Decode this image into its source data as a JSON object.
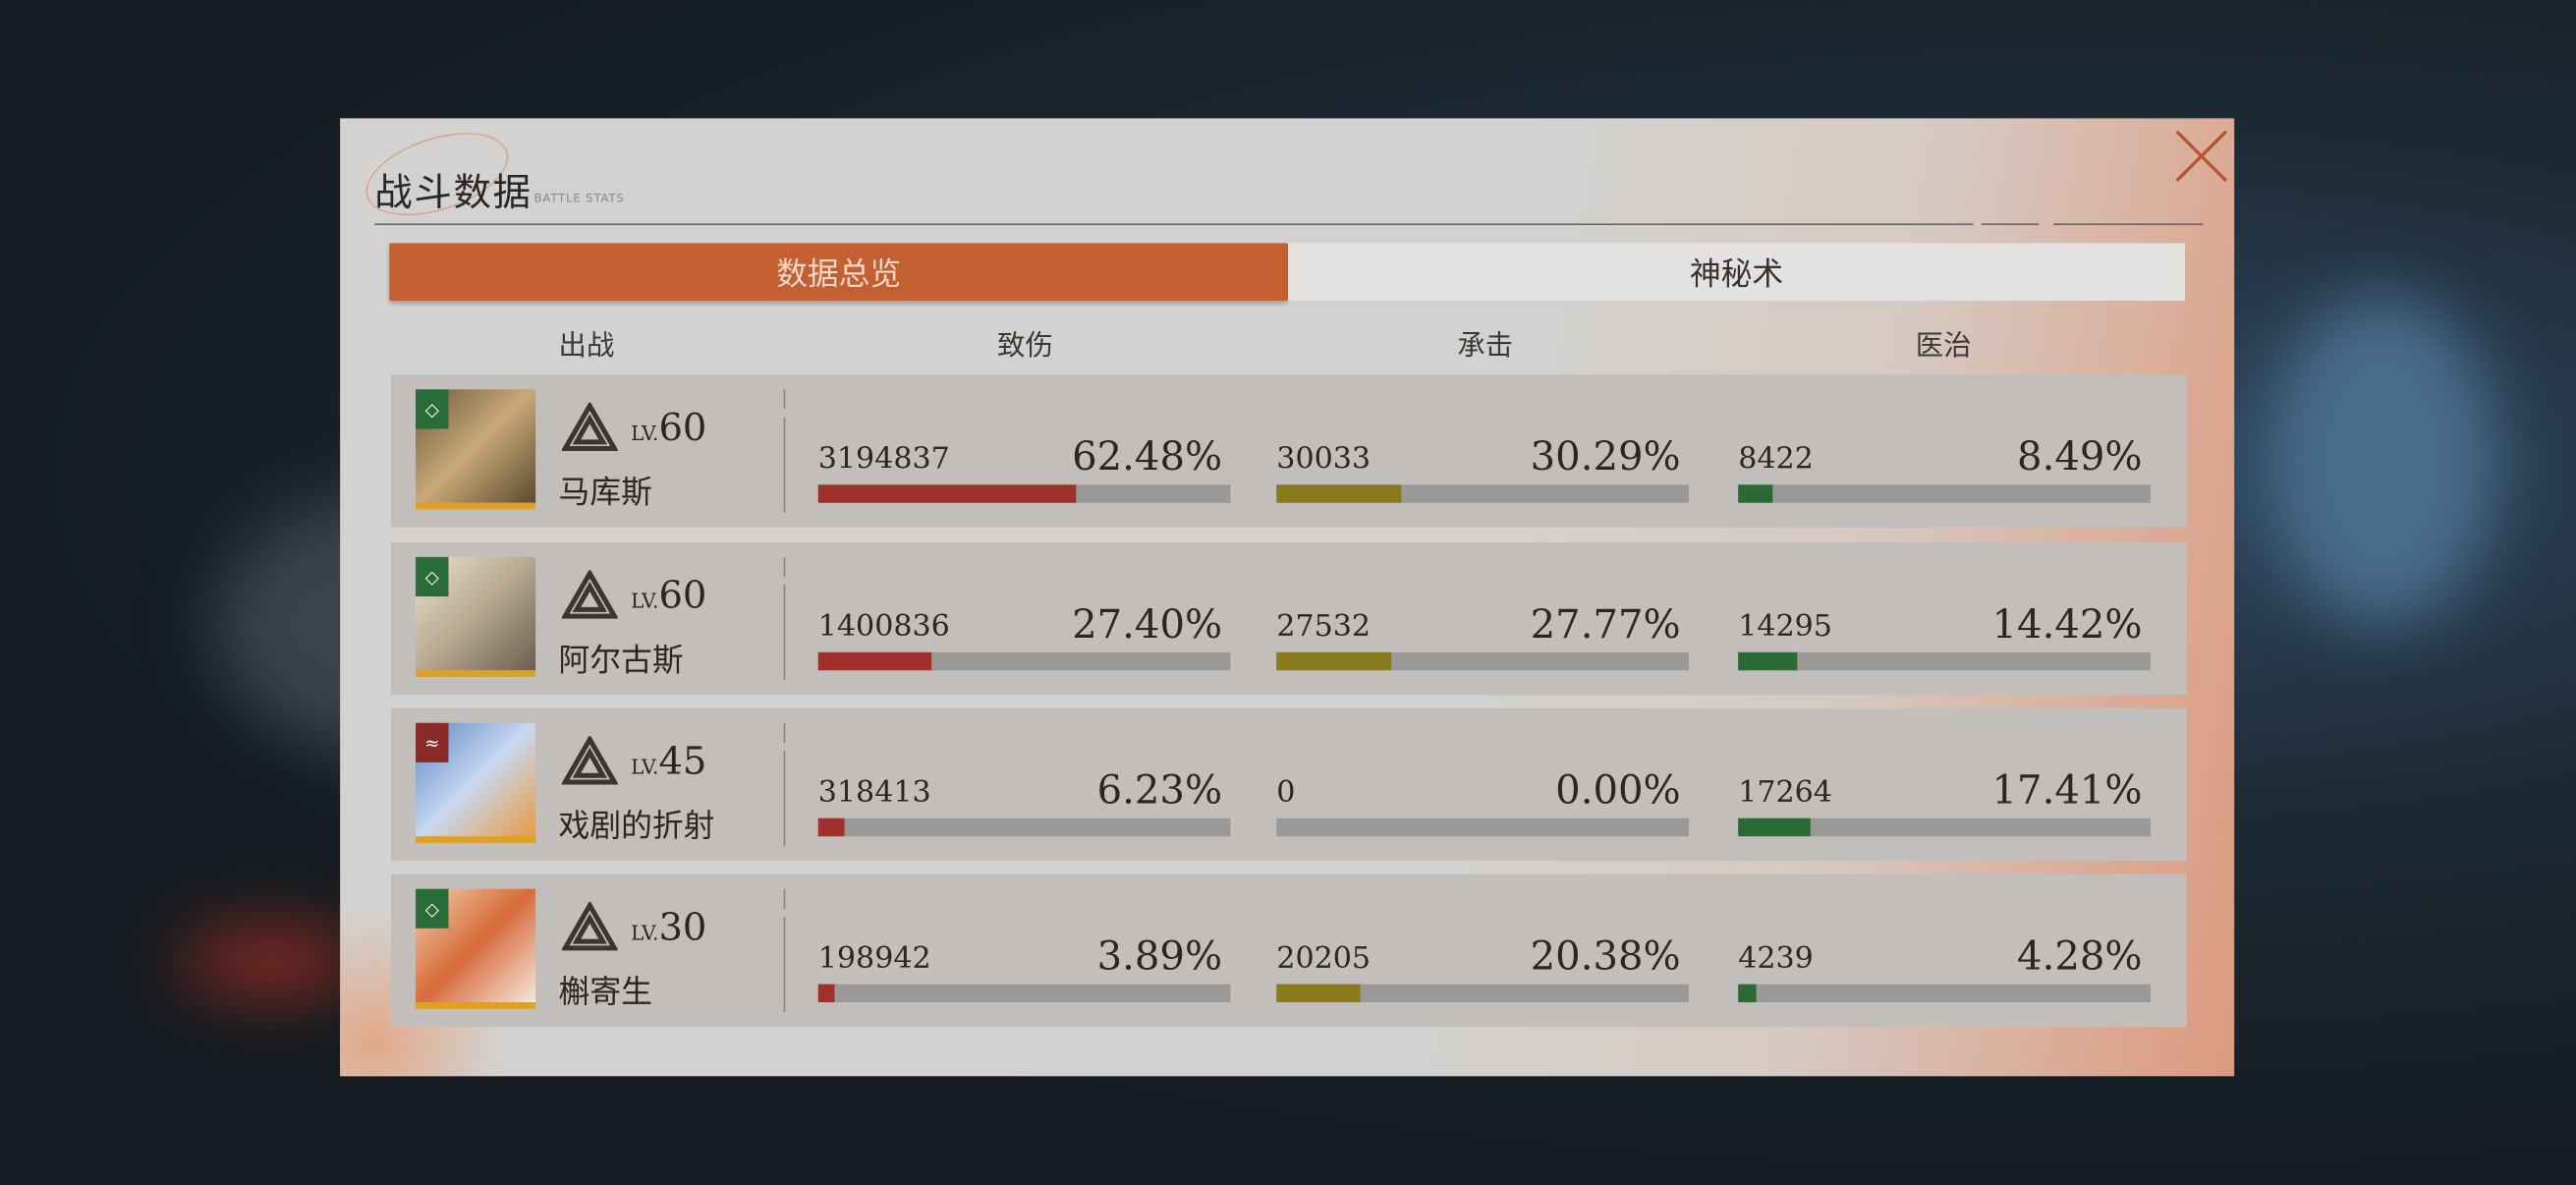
{
  "header": {
    "title": "战斗数据",
    "subtitle": "BATTLE STATS"
  },
  "tabs": [
    {
      "label": "数据总览",
      "active": true
    },
    {
      "label": "神秘术",
      "active": false
    }
  ],
  "columns": [
    "出战",
    "致伤",
    "承击",
    "医治"
  ],
  "colors": {
    "accent": "#c45f32",
    "damage": "#a0302a",
    "tank": "#8a7a1e",
    "heal": "#2a6b35",
    "track": "#9b9997"
  },
  "rows": [
    {
      "level_prefix": "LV.",
      "level": "60",
      "name": "马库斯",
      "element": "green-leaf",
      "damage": {
        "value": "3194837",
        "pct": "62.48%",
        "fraction": 0.6248
      },
      "tank": {
        "value": "30033",
        "pct": "30.29%",
        "fraction": 0.3029
      },
      "heal": {
        "value": "8422",
        "pct": "8.49%",
        "fraction": 0.0849
      }
    },
    {
      "level_prefix": "LV.",
      "level": "60",
      "name": "阿尔古斯",
      "element": "green-leaf",
      "damage": {
        "value": "1400836",
        "pct": "27.40%",
        "fraction": 0.274
      },
      "tank": {
        "value": "27532",
        "pct": "27.77%",
        "fraction": 0.2777
      },
      "heal": {
        "value": "14295",
        "pct": "14.42%",
        "fraction": 0.1442
      }
    },
    {
      "level_prefix": "LV.",
      "level": "45",
      "name": "戏剧的折射",
      "element": "red-wind",
      "damage": {
        "value": "318413",
        "pct": "6.23%",
        "fraction": 0.0623
      },
      "tank": {
        "value": "0",
        "pct": "0.00%",
        "fraction": 0
      },
      "heal": {
        "value": "17264",
        "pct": "17.41%",
        "fraction": 0.1741
      }
    },
    {
      "level_prefix": "LV.",
      "level": "30",
      "name": "槲寄生",
      "element": "green-leaf",
      "damage": {
        "value": "198942",
        "pct": "3.89%",
        "fraction": 0.0389
      },
      "tank": {
        "value": "20205",
        "pct": "20.38%",
        "fraction": 0.2038
      },
      "heal": {
        "value": "4239",
        "pct": "4.28%",
        "fraction": 0.0428
      }
    }
  ]
}
